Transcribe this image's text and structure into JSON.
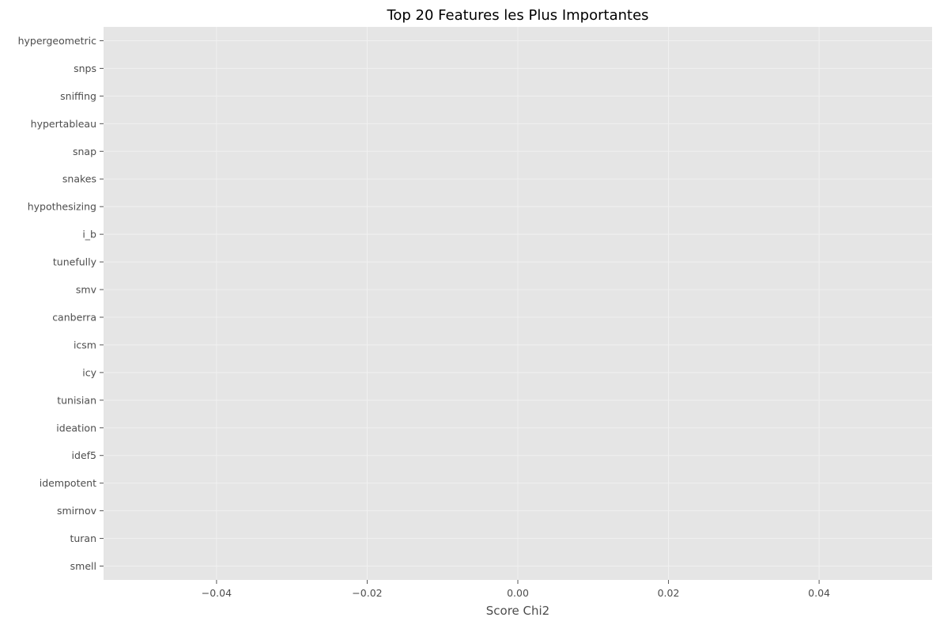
{
  "chart_data": {
    "type": "bar",
    "orientation": "horizontal",
    "title": "Top 20 Features les Plus Importantes",
    "xlabel": "Score Chi2",
    "ylabel": "",
    "categories": [
      "hypergeometric",
      "snps",
      "sniffing",
      "hypertableau",
      "snap",
      "snakes",
      "hypothesizing",
      "i_b",
      "tunefully",
      "smv",
      "canberra",
      "icsm",
      "icy",
      "tunisian",
      "ideation",
      "idef5",
      "idempotent",
      "smirnov",
      "turan",
      "smell"
    ],
    "values": [
      0,
      0,
      0,
      0,
      0,
      0,
      0,
      0,
      0,
      0,
      0,
      0,
      0,
      0,
      0,
      0,
      0,
      0,
      0,
      0
    ],
    "xlim": [
      -0.055,
      0.055
    ],
    "xticks": [
      -0.04,
      -0.02,
      0.0,
      0.02,
      0.04
    ],
    "xtick_labels": [
      "−0.04",
      "−0.02",
      "0.00",
      "0.02",
      "0.04"
    ],
    "grid": true,
    "style": "ggplot",
    "colors": {
      "axes_background": "#e5e5e5",
      "grid": "#f0f0f0",
      "tick_text": "#4d4d4d",
      "bar": "#348abd"
    }
  }
}
